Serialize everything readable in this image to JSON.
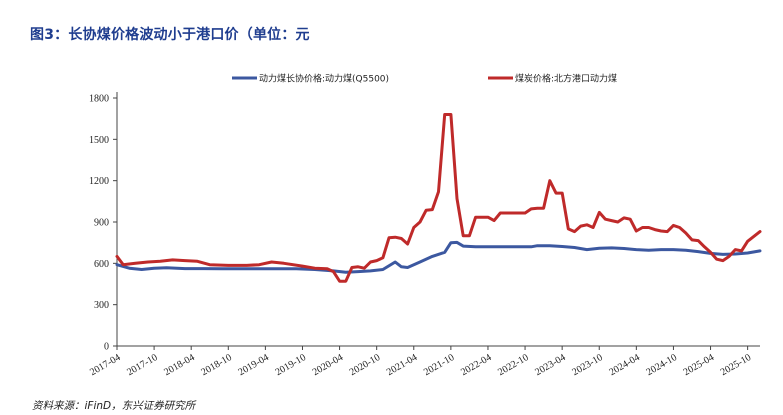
{
  "title": "图3：长协煤价格波动小于港口价（单位：元",
  "source": "资料来源：iFinD，东兴证券研究所",
  "colors": {
    "series1": "#3c58a0",
    "series2": "#bf2a2a",
    "title": "#1f3d8f"
  },
  "chart_data": {
    "type": "line",
    "title": "图3：长协煤价格波动小于港口价（单位：元",
    "ylim": [
      0,
      1800
    ],
    "yticks": [
      "0",
      "300",
      "600",
      "900",
      "1200",
      "1500",
      "1800"
    ],
    "xlim": [
      "2017-04",
      "2025-12"
    ],
    "xticks": [
      "2017-04",
      "2017-10",
      "2018-04",
      "2018-10",
      "2019-04",
      "2019-10",
      "2020-04",
      "2020-10",
      "2021-04",
      "2021-10",
      "2022-04",
      "2022-10",
      "2023-04",
      "2023-10",
      "2024-04",
      "2024-10",
      "2025-04",
      "2025-10"
    ],
    "grid": false,
    "legend": "top",
    "series": [
      {
        "name": "动力煤长协价格:动力煤(Q5500)",
        "points": [
          [
            "2017-04",
            590
          ],
          [
            "2017-06",
            565
          ],
          [
            "2017-08",
            555
          ],
          [
            "2017-10",
            565
          ],
          [
            "2017-12",
            568
          ],
          [
            "2018-03",
            562
          ],
          [
            "2018-06",
            562
          ],
          [
            "2018-09",
            560
          ],
          [
            "2018-12",
            560
          ],
          [
            "2019-03",
            560
          ],
          [
            "2019-06",
            560
          ],
          [
            "2019-09",
            560
          ],
          [
            "2019-12",
            555
          ],
          [
            "2020-03",
            545
          ],
          [
            "2020-05",
            535
          ],
          [
            "2020-07",
            540
          ],
          [
            "2020-09",
            545
          ],
          [
            "2020-11",
            555
          ],
          [
            "2021-01",
            610
          ],
          [
            "2021-02",
            575
          ],
          [
            "2021-03",
            570
          ],
          [
            "2021-05",
            610
          ],
          [
            "2021-07",
            650
          ],
          [
            "2021-09",
            680
          ],
          [
            "2021-10",
            750
          ],
          [
            "2021-11",
            752
          ],
          [
            "2021-12",
            725
          ],
          [
            "2022-02",
            720
          ],
          [
            "2022-05",
            720
          ],
          [
            "2022-08",
            720
          ],
          [
            "2022-11",
            720
          ],
          [
            "2022-12",
            728
          ],
          [
            "2023-02",
            728
          ],
          [
            "2023-04",
            722
          ],
          [
            "2023-06",
            715
          ],
          [
            "2023-08",
            700
          ],
          [
            "2023-10",
            710
          ],
          [
            "2023-12",
            712
          ],
          [
            "2024-02",
            708
          ],
          [
            "2024-04",
            700
          ],
          [
            "2024-06",
            695
          ],
          [
            "2024-08",
            700
          ],
          [
            "2024-10",
            700
          ],
          [
            "2024-12",
            695
          ],
          [
            "2025-02",
            685
          ],
          [
            "2025-04",
            672
          ],
          [
            "2025-06",
            665
          ],
          [
            "2025-08",
            668
          ],
          [
            "2025-10",
            675
          ],
          [
            "2025-12",
            690
          ]
        ]
      },
      {
        "name": "煤炭价格:北方港口动力煤",
        "points": [
          [
            "2017-04",
            650
          ],
          [
            "2017-05",
            590
          ],
          [
            "2017-07",
            600
          ],
          [
            "2017-09",
            610
          ],
          [
            "2017-11",
            615
          ],
          [
            "2018-01",
            625
          ],
          [
            "2018-03",
            620
          ],
          [
            "2018-05",
            615
          ],
          [
            "2018-07",
            590
          ],
          [
            "2018-10",
            585
          ],
          [
            "2019-01",
            585
          ],
          [
            "2019-03",
            590
          ],
          [
            "2019-05",
            610
          ],
          [
            "2019-07",
            600
          ],
          [
            "2019-10",
            580
          ],
          [
            "2019-12",
            565
          ],
          [
            "2020-02",
            560
          ],
          [
            "2020-03",
            540
          ],
          [
            "2020-04",
            470
          ],
          [
            "2020-05",
            470
          ],
          [
            "2020-06",
            570
          ],
          [
            "2020-07",
            575
          ],
          [
            "2020-08",
            565
          ],
          [
            "2020-09",
            610
          ],
          [
            "2020-10",
            620
          ],
          [
            "2020-11",
            640
          ],
          [
            "2020-12",
            785
          ],
          [
            "2021-01",
            790
          ],
          [
            "2021-02",
            780
          ],
          [
            "2021-03",
            740
          ],
          [
            "2021-04",
            860
          ],
          [
            "2021-05",
            900
          ],
          [
            "2021-06",
            985
          ],
          [
            "2021-07",
            990
          ],
          [
            "2021-08",
            1120
          ],
          [
            "2021-09",
            1680
          ],
          [
            "2021-10",
            1680
          ],
          [
            "2021-11",
            1070
          ],
          [
            "2021-12",
            800
          ],
          [
            "2022-01",
            800
          ],
          [
            "2022-02",
            935
          ],
          [
            "2022-03",
            935
          ],
          [
            "2022-04",
            935
          ],
          [
            "2022-05",
            910
          ],
          [
            "2022-06",
            965
          ],
          [
            "2022-08",
            965
          ],
          [
            "2022-10",
            965
          ],
          [
            "2022-11",
            995
          ],
          [
            "2022-12",
            1000
          ],
          [
            "2023-01",
            1000
          ],
          [
            "2023-02",
            1200
          ],
          [
            "2023-03",
            1110
          ],
          [
            "2023-04",
            1110
          ],
          [
            "2023-05",
            850
          ],
          [
            "2023-06",
            830
          ],
          [
            "2023-07",
            870
          ],
          [
            "2023-08",
            880
          ],
          [
            "2023-09",
            860
          ],
          [
            "2023-10",
            970
          ],
          [
            "2023-11",
            920
          ],
          [
            "2023-12",
            910
          ],
          [
            "2024-01",
            900
          ],
          [
            "2024-02",
            930
          ],
          [
            "2024-03",
            920
          ],
          [
            "2024-04",
            835
          ],
          [
            "2024-05",
            860
          ],
          [
            "2024-06",
            860
          ],
          [
            "2024-07",
            845
          ],
          [
            "2024-08",
            835
          ],
          [
            "2024-09",
            830
          ],
          [
            "2024-10",
            875
          ],
          [
            "2024-11",
            860
          ],
          [
            "2024-12",
            820
          ],
          [
            "2025-01",
            770
          ],
          [
            "2025-02",
            765
          ],
          [
            "2025-03",
            720
          ],
          [
            "2025-04",
            680
          ],
          [
            "2025-05",
            630
          ],
          [
            "2025-06",
            620
          ],
          [
            "2025-07",
            650
          ],
          [
            "2025-08",
            700
          ],
          [
            "2025-09",
            690
          ],
          [
            "2025-10",
            760
          ],
          [
            "2025-12",
            830
          ]
        ]
      }
    ]
  }
}
